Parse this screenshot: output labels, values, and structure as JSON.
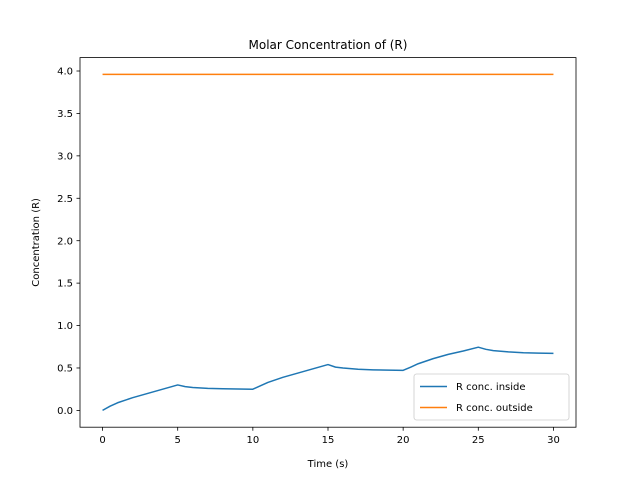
{
  "chart_data": {
    "type": "line",
    "title": "Molar Concentration of (R)",
    "xlabel": "Time (s)",
    "ylabel": "Concentration (R)",
    "xlim": [
      -1.5,
      31.5
    ],
    "ylim": [
      -0.198,
      4.158
    ],
    "xticks": [
      0,
      5,
      10,
      15,
      20,
      25,
      30
    ],
    "xtick_labels": [
      "0",
      "5",
      "10",
      "15",
      "20",
      "25",
      "30"
    ],
    "yticks": [
      0.0,
      0.5,
      1.0,
      1.5,
      2.0,
      2.5,
      3.0,
      3.5,
      4.0
    ],
    "ytick_labels": [
      "0.0",
      "0.5",
      "1.0",
      "1.5",
      "2.0",
      "2.5",
      "3.0",
      "3.5",
      "4.0"
    ],
    "grid": false,
    "legend_position": "lower-right",
    "series": [
      {
        "name": "R conc. inside",
        "color": "#1f77b4",
        "x": [
          0,
          0.5,
          1,
          2,
          3,
          4,
          5,
          5.5,
          6,
          7,
          8,
          9,
          10,
          10.5,
          11,
          12,
          13,
          14,
          15,
          15.5,
          16,
          17,
          18,
          19,
          20,
          20.5,
          21,
          22,
          23,
          24,
          25,
          25.5,
          26,
          27,
          28,
          29,
          30
        ],
        "y": [
          0.0,
          0.05,
          0.09,
          0.15,
          0.2,
          0.25,
          0.3,
          0.28,
          0.27,
          0.26,
          0.255,
          0.252,
          0.25,
          0.29,
          0.33,
          0.39,
          0.44,
          0.49,
          0.54,
          0.51,
          0.5,
          0.485,
          0.478,
          0.475,
          0.472,
          0.51,
          0.55,
          0.61,
          0.66,
          0.7,
          0.745,
          0.72,
          0.705,
          0.69,
          0.68,
          0.675,
          0.672
        ]
      },
      {
        "name": "R conc. outside",
        "color": "#ff7f0e",
        "x": [
          0,
          30
        ],
        "y": [
          3.96,
          3.96
        ]
      }
    ]
  }
}
